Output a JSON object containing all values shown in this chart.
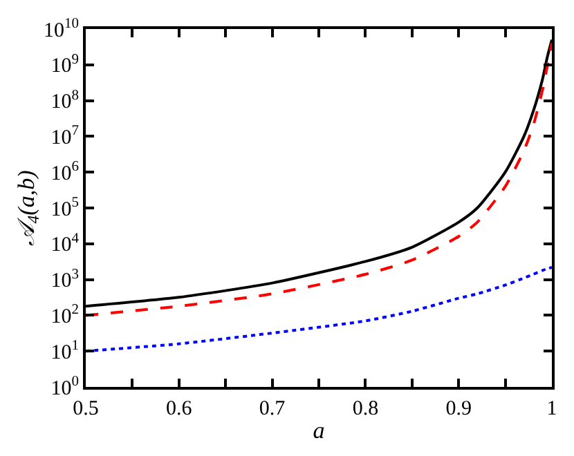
{
  "chart_data": {
    "type": "line",
    "xlabel": "a",
    "ylabel": "𝒜$_{4}$(a,b)",
    "log": "y",
    "legend": false,
    "marker": "none",
    "xlim": [
      0.5,
      1
    ],
    "ylim": [
      1,
      10000000000
    ],
    "xticks": [
      0.5,
      {
        "value": 0.55,
        "label": null
      },
      0.6,
      {
        "value": 0.65,
        "label": null
      },
      0.7,
      {
        "value": 0.75,
        "label": null
      },
      0.8,
      {
        "value": 0.85,
        "label": null
      },
      0.9,
      {
        "value": 0.95,
        "label": null
      },
      1
    ],
    "yticks": [
      {
        "value": 1,
        "label": "10$^{0}$"
      },
      {
        "value": 10,
        "label": "10$^{1}$"
      },
      {
        "value": 100,
        "label": "10$^{2}$"
      },
      {
        "value": 1000,
        "label": "10$^{3}$"
      },
      {
        "value": 10000,
        "label": "10$^{4}$"
      },
      {
        "value": 100000,
        "label": "10$^{5}$"
      },
      {
        "value": 1000000,
        "label": "10$^{6}$"
      },
      {
        "value": 10000000,
        "label": "10$^{7}$"
      },
      {
        "value": 100000000,
        "label": "10$^{8}$"
      },
      {
        "value": 1000000000,
        "label": "10$^{9}$"
      },
      {
        "value": 10000000000,
        "label": "10$^{10}$"
      }
    ],
    "x": [
      0.5,
      0.6,
      0.7,
      0.8,
      0.85,
      0.9,
      0.92,
      0.95,
      0.97,
      0.98,
      0.99,
      0.995,
      1.0
    ],
    "series": [
      {
        "color": "#000000",
        "line_style": "solid",
        "values": [
          180,
          320,
          800,
          3200,
          8000,
          40000,
          100000,
          1000000,
          10000000,
          50000000,
          400000000,
          1600000000,
          5000000000
        ]
      },
      {
        "color": "#ff0000",
        "line_style": "dashed",
        "values": [
          100,
          180,
          400,
          1400,
          3500,
          16000,
          40000,
          400000,
          4000000,
          20000000,
          200000000,
          900000000,
          4000000000
        ]
      },
      {
        "color": "#0000ff",
        "line_style": "dotted",
        "values": [
          10,
          16,
          32,
          70,
          130,
          300,
          400,
          700,
          1100,
          1400,
          1800,
          2000,
          2200
        ]
      }
    ]
  }
}
